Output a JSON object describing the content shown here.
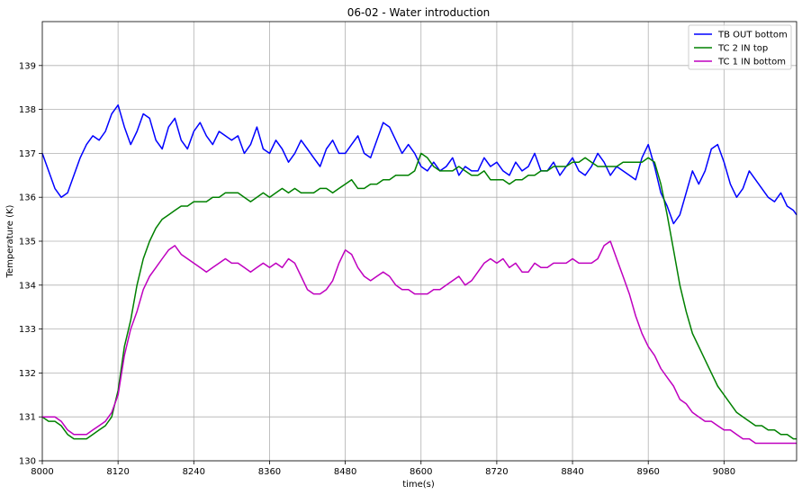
{
  "chart_data": {
    "type": "line",
    "title": "06-02 - Water introduction",
    "xlabel": "time(s)",
    "ylabel": "Temperature (K)",
    "xlim": [
      8000,
      9195
    ],
    "ylim": [
      130,
      140
    ],
    "xticks": [
      8000,
      8120,
      8240,
      8360,
      8480,
      8600,
      8720,
      8840,
      8960,
      9080
    ],
    "yticks": [
      130,
      131,
      132,
      133,
      134,
      135,
      136,
      137,
      138,
      139
    ],
    "grid": true,
    "legend_position": "upper right",
    "series": [
      {
        "name": "TB OUT bottom",
        "color": "#0000ff",
        "x": [
          8000,
          8010,
          8020,
          8030,
          8040,
          8050,
          8060,
          8070,
          8080,
          8090,
          8100,
          8110,
          8120,
          8130,
          8140,
          8150,
          8160,
          8170,
          8180,
          8190,
          8200,
          8210,
          8220,
          8230,
          8240,
          8250,
          8260,
          8270,
          8280,
          8290,
          8300,
          8310,
          8320,
          8330,
          8340,
          8350,
          8360,
          8370,
          8380,
          8390,
          8400,
          8410,
          8420,
          8430,
          8440,
          8450,
          8460,
          8470,
          8480,
          8490,
          8500,
          8510,
          8520,
          8530,
          8540,
          8550,
          8560,
          8570,
          8580,
          8590,
          8600,
          8610,
          8620,
          8630,
          8640,
          8650,
          8660,
          8670,
          8680,
          8690,
          8700,
          8710,
          8720,
          8730,
          8740,
          8750,
          8760,
          8770,
          8780,
          8790,
          8800,
          8810,
          8820,
          8830,
          8840,
          8850,
          8860,
          8870,
          8880,
          8890,
          8900,
          8910,
          8920,
          8930,
          8940,
          8950,
          8960,
          8970,
          8980,
          8990,
          9000,
          9010,
          9020,
          9030,
          9040,
          9050,
          9060,
          9070,
          9080,
          9090,
          9100,
          9110,
          9120,
          9130,
          9140,
          9150,
          9160,
          9170,
          9180,
          9190,
          9195
        ],
        "y": [
          137.0,
          136.6,
          136.2,
          136.0,
          136.1,
          136.5,
          136.9,
          137.2,
          137.4,
          137.3,
          137.5,
          137.9,
          138.1,
          137.6,
          137.2,
          137.5,
          137.9,
          137.8,
          137.3,
          137.1,
          137.6,
          137.8,
          137.3,
          137.1,
          137.5,
          137.7,
          137.4,
          137.2,
          137.5,
          137.4,
          137.3,
          137.4,
          137.0,
          137.2,
          137.6,
          137.1,
          137.0,
          137.3,
          137.1,
          136.8,
          137.0,
          137.3,
          137.1,
          136.9,
          136.7,
          137.1,
          137.3,
          137.0,
          137.0,
          137.2,
          137.4,
          137.0,
          136.9,
          137.3,
          137.7,
          137.6,
          137.3,
          137.0,
          137.2,
          137.0,
          136.7,
          136.6,
          136.8,
          136.6,
          136.7,
          136.9,
          136.5,
          136.7,
          136.6,
          136.6,
          136.9,
          136.7,
          136.8,
          136.6,
          136.5,
          136.8,
          136.6,
          136.7,
          137.0,
          136.6,
          136.6,
          136.8,
          136.5,
          136.7,
          136.9,
          136.6,
          136.5,
          136.7,
          137.0,
          136.8,
          136.5,
          136.7,
          136.6,
          136.5,
          136.4,
          136.9,
          137.2,
          136.7,
          136.1,
          135.8,
          135.4,
          135.6,
          136.1,
          136.6,
          136.3,
          136.6,
          137.1,
          137.2,
          136.8,
          136.3,
          136.0,
          136.2,
          136.6,
          136.4,
          136.2,
          136.0,
          135.9,
          136.1,
          135.8,
          135.7,
          135.6
        ]
      },
      {
        "name": "TC 2 IN top",
        "color": "#008000",
        "x": [
          8000,
          8010,
          8020,
          8030,
          8040,
          8050,
          8060,
          8070,
          8080,
          8090,
          8100,
          8110,
          8120,
          8130,
          8140,
          8150,
          8160,
          8170,
          8180,
          8190,
          8200,
          8210,
          8220,
          8230,
          8240,
          8250,
          8260,
          8270,
          8280,
          8290,
          8300,
          8310,
          8320,
          8330,
          8340,
          8350,
          8360,
          8370,
          8380,
          8390,
          8400,
          8410,
          8420,
          8430,
          8440,
          8450,
          8460,
          8470,
          8480,
          8490,
          8500,
          8510,
          8520,
          8530,
          8540,
          8550,
          8560,
          8570,
          8580,
          8590,
          8600,
          8610,
          8620,
          8630,
          8640,
          8650,
          8660,
          8670,
          8680,
          8690,
          8700,
          8710,
          8720,
          8730,
          8740,
          8750,
          8760,
          8770,
          8780,
          8790,
          8800,
          8810,
          8820,
          8830,
          8840,
          8850,
          8860,
          8870,
          8880,
          8890,
          8900,
          8910,
          8920,
          8930,
          8940,
          8950,
          8960,
          8970,
          8980,
          8990,
          9000,
          9010,
          9020,
          9030,
          9040,
          9050,
          9060,
          9070,
          9080,
          9090,
          9100,
          9110,
          9120,
          9130,
          9140,
          9150,
          9160,
          9170,
          9180,
          9190,
          9195
        ],
        "y": [
          131.0,
          130.9,
          130.9,
          130.8,
          130.6,
          130.5,
          130.5,
          130.5,
          130.6,
          130.7,
          130.8,
          131.0,
          131.6,
          132.6,
          133.2,
          134.0,
          134.6,
          135.0,
          135.3,
          135.5,
          135.6,
          135.7,
          135.8,
          135.8,
          135.9,
          135.9,
          135.9,
          136.0,
          136.0,
          136.1,
          136.1,
          136.1,
          136.0,
          135.9,
          136.0,
          136.1,
          136.0,
          136.1,
          136.2,
          136.1,
          136.2,
          136.1,
          136.1,
          136.1,
          136.2,
          136.2,
          136.1,
          136.2,
          136.3,
          136.4,
          136.2,
          136.2,
          136.3,
          136.3,
          136.4,
          136.4,
          136.5,
          136.5,
          136.5,
          136.6,
          137.0,
          136.9,
          136.7,
          136.6,
          136.6,
          136.6,
          136.7,
          136.6,
          136.5,
          136.5,
          136.6,
          136.4,
          136.4,
          136.4,
          136.3,
          136.4,
          136.4,
          136.5,
          136.5,
          136.6,
          136.6,
          136.7,
          136.7,
          136.7,
          136.8,
          136.8,
          136.9,
          136.8,
          136.7,
          136.7,
          136.7,
          136.7,
          136.8,
          136.8,
          136.8,
          136.8,
          136.9,
          136.8,
          136.3,
          135.6,
          134.8,
          134.0,
          133.4,
          132.9,
          132.6,
          132.3,
          132.0,
          131.7,
          131.5,
          131.3,
          131.1,
          131.0,
          130.9,
          130.8,
          130.8,
          130.7,
          130.7,
          130.6,
          130.6,
          130.5,
          130.5
        ]
      },
      {
        "name": "TC 1 IN bottom",
        "color": "#bf00bf",
        "x": [
          8000,
          8010,
          8020,
          8030,
          8040,
          8050,
          8060,
          8070,
          8080,
          8090,
          8100,
          8110,
          8120,
          8130,
          8140,
          8150,
          8160,
          8170,
          8180,
          8190,
          8200,
          8210,
          8220,
          8230,
          8240,
          8250,
          8260,
          8270,
          8280,
          8290,
          8300,
          8310,
          8320,
          8330,
          8340,
          8350,
          8360,
          8370,
          8380,
          8390,
          8400,
          8410,
          8420,
          8430,
          8440,
          8450,
          8460,
          8470,
          8480,
          8490,
          8500,
          8510,
          8520,
          8530,
          8540,
          8550,
          8560,
          8570,
          8580,
          8590,
          8600,
          8610,
          8620,
          8630,
          8640,
          8650,
          8660,
          8670,
          8680,
          8690,
          8700,
          8710,
          8720,
          8730,
          8740,
          8750,
          8760,
          8770,
          8780,
          8790,
          8800,
          8810,
          8820,
          8830,
          8840,
          8850,
          8860,
          8870,
          8880,
          8890,
          8900,
          8910,
          8920,
          8930,
          8940,
          8950,
          8960,
          8970,
          8980,
          8990,
          9000,
          9010,
          9020,
          9030,
          9040,
          9050,
          9060,
          9070,
          9080,
          9090,
          9100,
          9110,
          9120,
          9130,
          9140,
          9150,
          9160,
          9170,
          9180,
          9190,
          9195
        ],
        "y": [
          131.0,
          131.0,
          131.0,
          130.9,
          130.7,
          130.6,
          130.6,
          130.6,
          130.7,
          130.8,
          130.9,
          131.1,
          131.5,
          132.4,
          133.0,
          133.4,
          133.9,
          134.2,
          134.4,
          134.6,
          134.8,
          134.9,
          134.7,
          134.6,
          134.5,
          134.4,
          134.3,
          134.4,
          134.5,
          134.6,
          134.5,
          134.5,
          134.4,
          134.3,
          134.4,
          134.5,
          134.4,
          134.5,
          134.4,
          134.6,
          134.5,
          134.2,
          133.9,
          133.8,
          133.8,
          133.9,
          134.1,
          134.5,
          134.8,
          134.7,
          134.4,
          134.2,
          134.1,
          134.2,
          134.3,
          134.2,
          134.0,
          133.9,
          133.9,
          133.8,
          133.8,
          133.8,
          133.9,
          133.9,
          134.0,
          134.1,
          134.2,
          134.0,
          134.1,
          134.3,
          134.5,
          134.6,
          134.5,
          134.6,
          134.4,
          134.5,
          134.3,
          134.3,
          134.5,
          134.4,
          134.4,
          134.5,
          134.5,
          134.5,
          134.6,
          134.5,
          134.5,
          134.5,
          134.6,
          134.9,
          135.0,
          134.6,
          134.2,
          133.8,
          133.3,
          132.9,
          132.6,
          132.4,
          132.1,
          131.9,
          131.7,
          131.4,
          131.3,
          131.1,
          131.0,
          130.9,
          130.9,
          130.8,
          130.7,
          130.7,
          130.6,
          130.5,
          130.5,
          130.4,
          130.4,
          130.4,
          130.4,
          130.4,
          130.4,
          130.4,
          130.4
        ]
      }
    ]
  }
}
